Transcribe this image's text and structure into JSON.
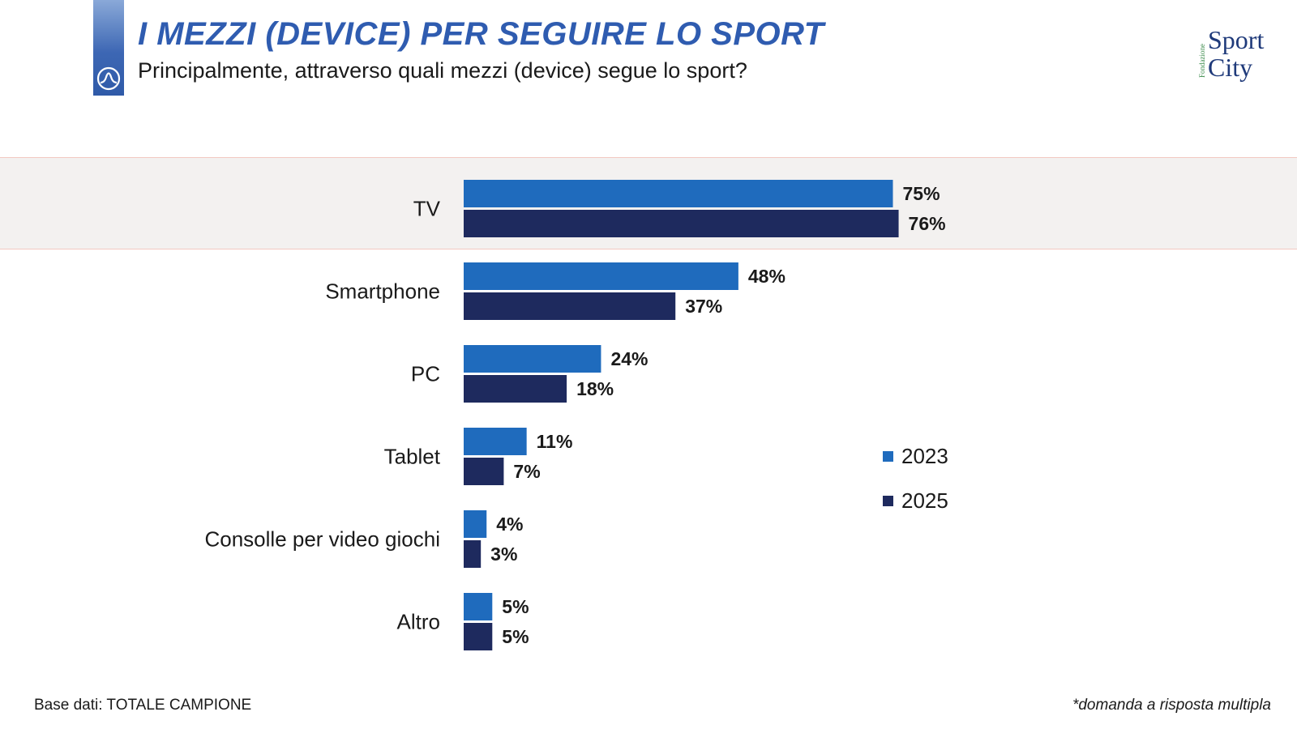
{
  "header": {
    "title": "I MEZZI (DEVICE) PER SEGUIRE LO SPORT",
    "subtitle": "Principalmente, attraverso quali mezzi (device) segue lo sport?",
    "logo_icon": "wave-arch-icon"
  },
  "brand": {
    "prefix": "Fondazione",
    "line1": "Sport",
    "line2": "City"
  },
  "footer": {
    "base": "Base dati: TOTALE CAMPIONE",
    "note": "*domanda a risposta multipla"
  },
  "colors": {
    "series_2023": "#1f6bbd",
    "series_2025": "#1e2a5e",
    "title": "#2f5cb0",
    "highlight": "#f3f1f0"
  },
  "chart_data": {
    "type": "bar",
    "orientation": "horizontal",
    "title": "I MEZZI (DEVICE) PER SEGUIRE LO SPORT",
    "categories": [
      "TV",
      "Smartphone",
      "PC",
      "Tablet",
      "Consolle per video giochi",
      "Altro"
    ],
    "series": [
      {
        "name": "2023",
        "values": [
          75,
          48,
          24,
          11,
          4,
          5
        ],
        "labels": [
          "75%",
          "48%",
          "24%",
          "11%",
          "4%",
          "5%"
        ]
      },
      {
        "name": "2025",
        "values": [
          76,
          37,
          18,
          7,
          3,
          5
        ],
        "labels": [
          "76%",
          "37%",
          "18%",
          "7%",
          "3%",
          "5%"
        ]
      }
    ],
    "value_suffix": "%",
    "xlim": [
      0,
      100
    ],
    "legend_position": "right",
    "highlighted_category": "TV",
    "grid": false
  }
}
